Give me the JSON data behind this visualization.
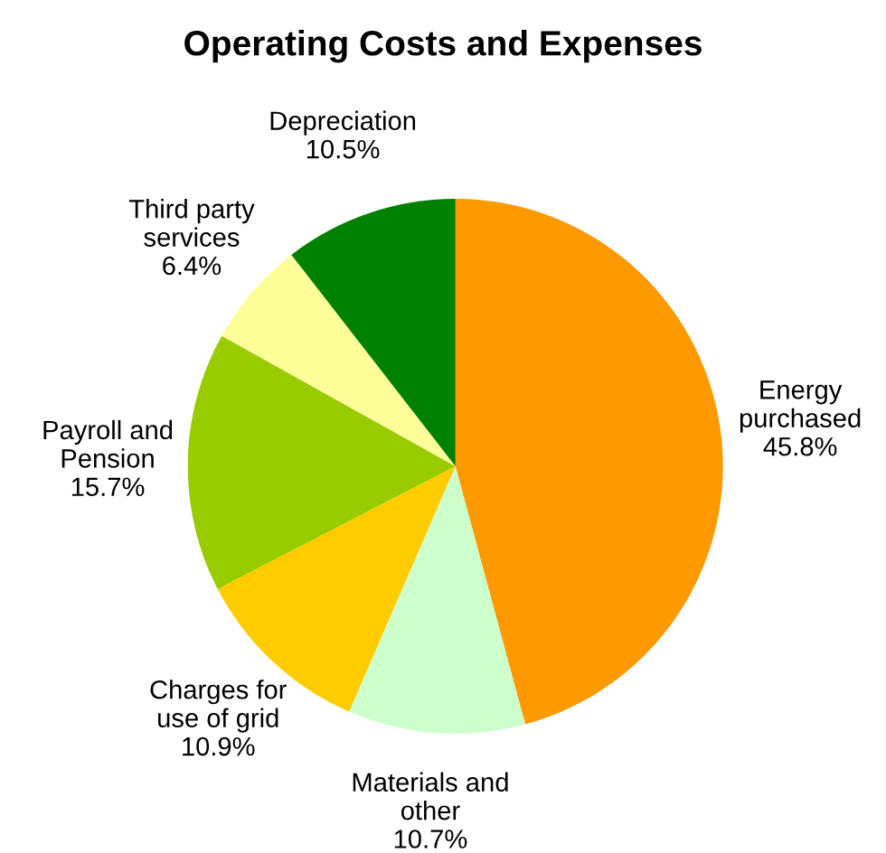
{
  "chart_data": {
    "type": "pie",
    "title": "Operating Costs and Expenses",
    "categories": [
      "Energy\npurchased",
      "Materials and\nother",
      "Charges for\nuse of grid",
      "Payroll and\nPension",
      "Third party\nservices",
      "Depreciation"
    ],
    "values": [
      45.8,
      10.7,
      10.9,
      15.7,
      6.4,
      10.5
    ],
    "colors": [
      "#ff9900",
      "#ccffcc",
      "#ffcc00",
      "#99cc00",
      "#ffff99",
      "#008000"
    ],
    "value_labels": [
      "45.8%",
      "10.7%",
      "10.9%",
      "15.7%",
      "6.4%",
      "10.5%"
    ],
    "legend": false
  }
}
